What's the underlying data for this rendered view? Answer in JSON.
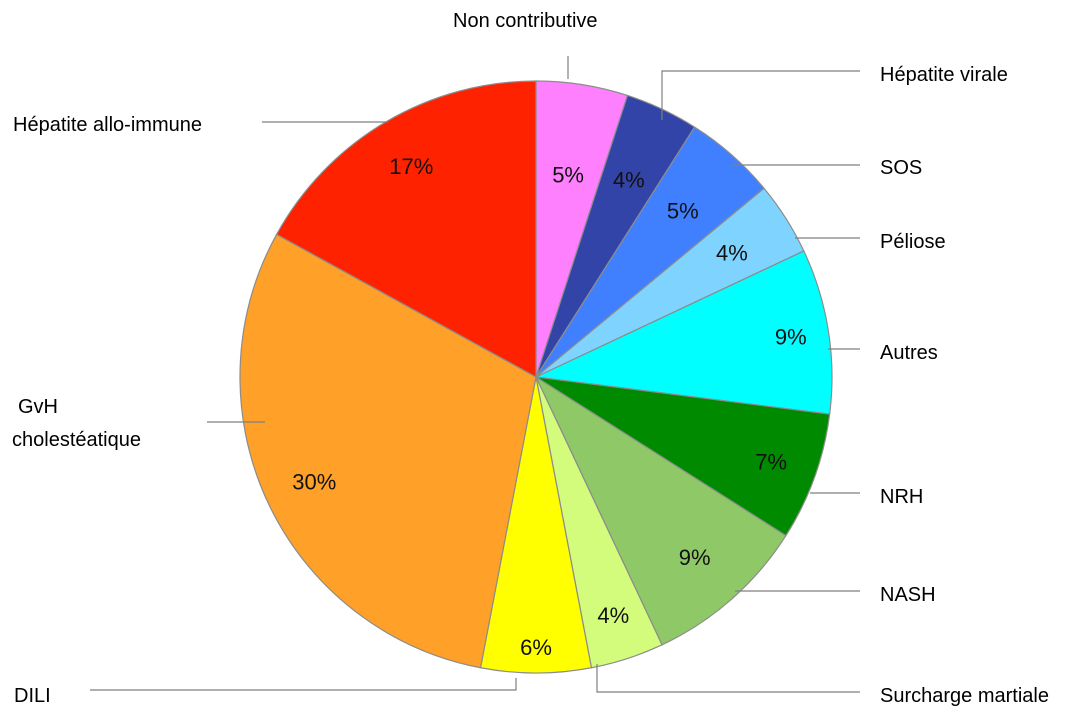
{
  "chart_data": {
    "type": "pie",
    "title": "",
    "start_angle_deg": 0,
    "direction": "clockwise",
    "slices": [
      {
        "label": "Non contributive",
        "value": 5,
        "value_label": "5%",
        "color": "#ff80ff"
      },
      {
        "label": "Hépatite virale",
        "value": 4,
        "value_label": "4%",
        "color": "#3344a8"
      },
      {
        "label": "SOS",
        "value": 5,
        "value_label": "5%",
        "color": "#4080ff"
      },
      {
        "label": "Péliose",
        "value": 4,
        "value_label": "4%",
        "color": "#7fd4ff"
      },
      {
        "label": "Autres",
        "value": 9,
        "value_label": "9%",
        "color": "#00ffff"
      },
      {
        "label": "NRH",
        "value": 7,
        "value_label": "7%",
        "color": "#008a00"
      },
      {
        "label": "NASH",
        "value": 9,
        "value_label": "9%",
        "color": "#8fc866"
      },
      {
        "label": "Surcharge martiale",
        "value": 4,
        "value_label": "4%",
        "color": "#d4fc7c"
      },
      {
        "label": "DILI",
        "value": 6,
        "value_label": "6%",
        "color": "#ffff00"
      },
      {
        "label": "GvH cholestéatique",
        "value": 30,
        "value_label": "30%",
        "color": "#ffa028"
      },
      {
        "label": "Hépatite allo-immune",
        "value": 17,
        "value_label": "17%",
        "color": "#ff2200"
      }
    ]
  }
}
